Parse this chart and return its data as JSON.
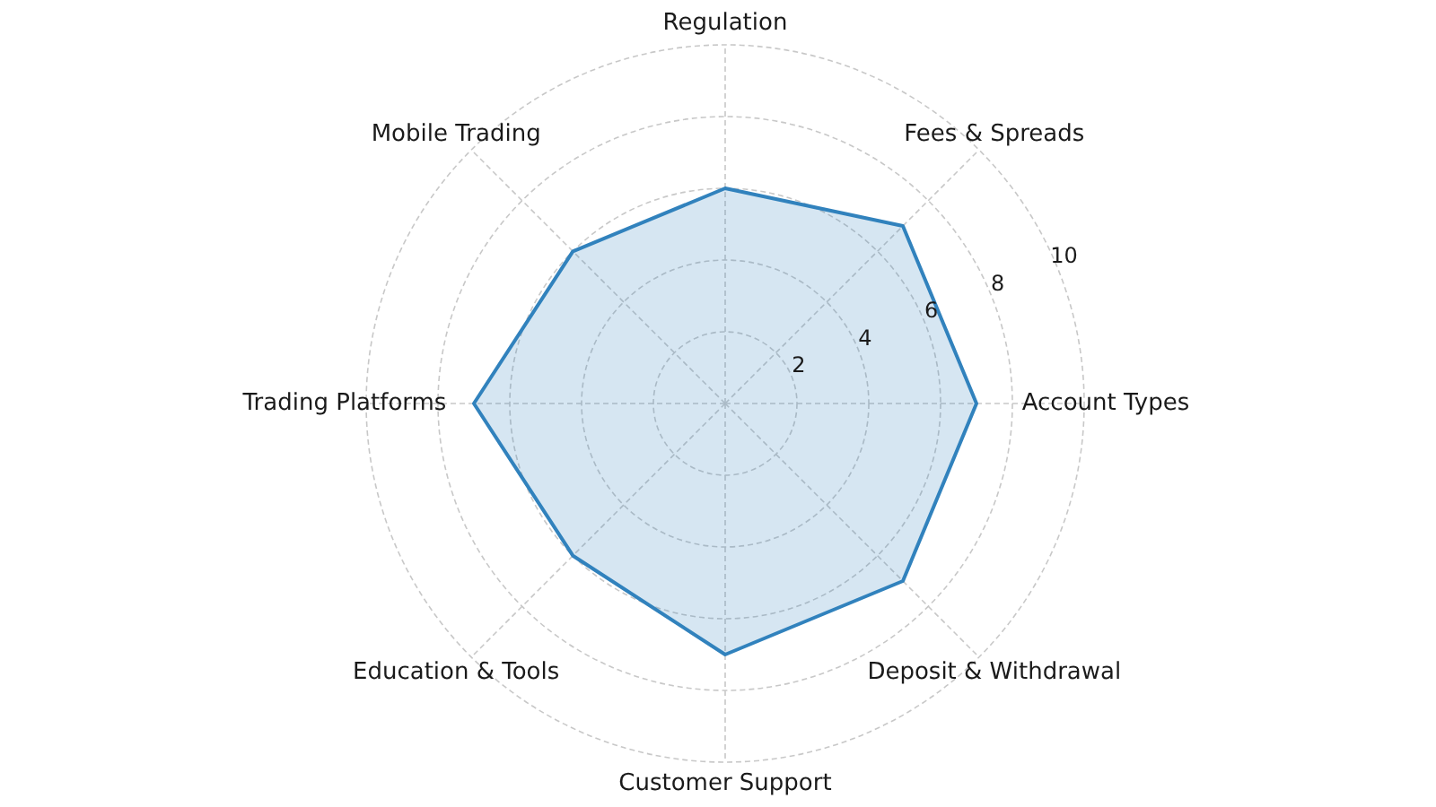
{
  "chart_data": {
    "type": "radar",
    "categories": [
      "Regulation",
      "Fees & Spreads",
      "Account Types",
      "Deposit & Withdrawal",
      "Customer Support",
      "Education & Tools",
      "Trading Platforms",
      "Mobile Trading"
    ],
    "series": [
      {
        "color": "#3182bd",
        "values": [
          6,
          7,
          7,
          7,
          7,
          6,
          7,
          6
        ]
      }
    ],
    "ylim": [
      0,
      10
    ],
    "yticks": [
      2,
      4,
      6,
      8,
      10
    ],
    "grid": true
  }
}
